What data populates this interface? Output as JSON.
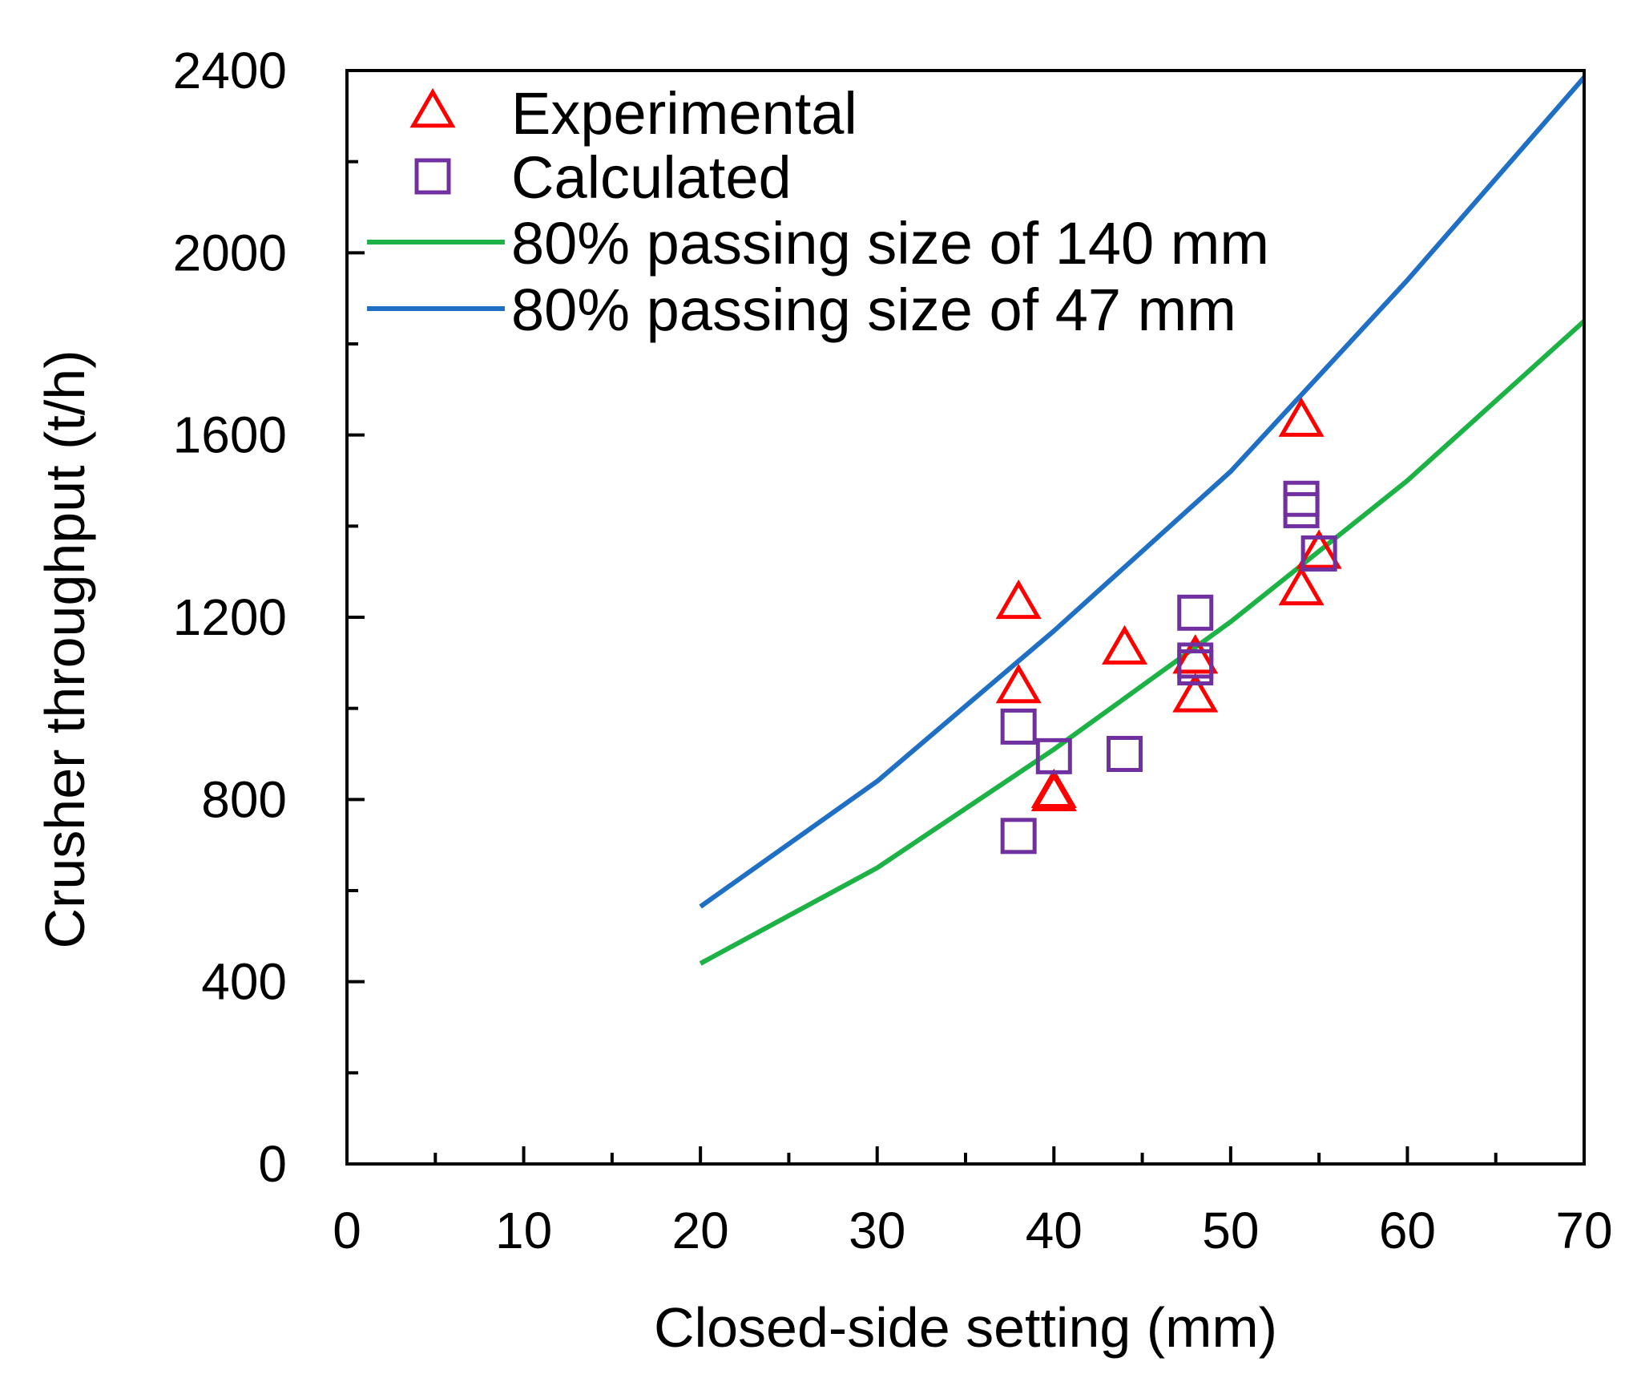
{
  "chart_data": {
    "type": "scatter",
    "xlabel": "Closed-side setting (mm)",
    "ylabel": "Crusher throughput (t/h)",
    "xlim": [
      0,
      70
    ],
    "ylim": [
      0,
      2400
    ],
    "xticks": [
      0,
      10,
      20,
      30,
      40,
      50,
      60,
      70
    ],
    "yticks": [
      0,
      400,
      800,
      1200,
      1600,
      2000,
      2400
    ],
    "x_minor_step": 5,
    "y_minor_step": 200,
    "grid": false,
    "legend_position": "top-left",
    "colors": {
      "experimental": "#ff0000",
      "calculated": "#7030a0",
      "line_140": "#1db245",
      "line_47": "#1f6fc5",
      "axis": "#000000"
    },
    "series": [
      {
        "name": "Experimental",
        "kind": "scatter",
        "marker": "triangle",
        "points": [
          {
            "x": 38,
            "y": 1230
          },
          {
            "x": 38,
            "y": 1045
          },
          {
            "x": 40,
            "y": 815
          },
          {
            "x": 40,
            "y": 808
          },
          {
            "x": 44,
            "y": 1130
          },
          {
            "x": 48,
            "y": 1110
          },
          {
            "x": 48,
            "y": 1025
          },
          {
            "x": 54,
            "y": 1630
          },
          {
            "x": 54,
            "y": 1260
          },
          {
            "x": 55,
            "y": 1340
          }
        ]
      },
      {
        "name": "Calculated",
        "kind": "scatter",
        "marker": "square",
        "points": [
          {
            "x": 38,
            "y": 960
          },
          {
            "x": 38,
            "y": 720
          },
          {
            "x": 40,
            "y": 895
          },
          {
            "x": 44,
            "y": 900
          },
          {
            "x": 48,
            "y": 1210
          },
          {
            "x": 48,
            "y": 1105
          },
          {
            "x": 48,
            "y": 1090
          },
          {
            "x": 54,
            "y": 1460
          },
          {
            "x": 54,
            "y": 1435
          },
          {
            "x": 55,
            "y": 1340
          }
        ]
      },
      {
        "name": "80% passing size of 140 mm",
        "kind": "line",
        "points": [
          {
            "x": 20,
            "y": 440
          },
          {
            "x": 30,
            "y": 650
          },
          {
            "x": 40,
            "y": 910
          },
          {
            "x": 50,
            "y": 1190
          },
          {
            "x": 60,
            "y": 1500
          },
          {
            "x": 70,
            "y": 1850
          }
        ]
      },
      {
        "name": "80% passing size of 47 mm",
        "kind": "line",
        "points": [
          {
            "x": 20,
            "y": 565
          },
          {
            "x": 30,
            "y": 840
          },
          {
            "x": 40,
            "y": 1170
          },
          {
            "x": 50,
            "y": 1520
          },
          {
            "x": 60,
            "y": 1940
          },
          {
            "x": 70,
            "y": 2385
          }
        ]
      }
    ]
  }
}
